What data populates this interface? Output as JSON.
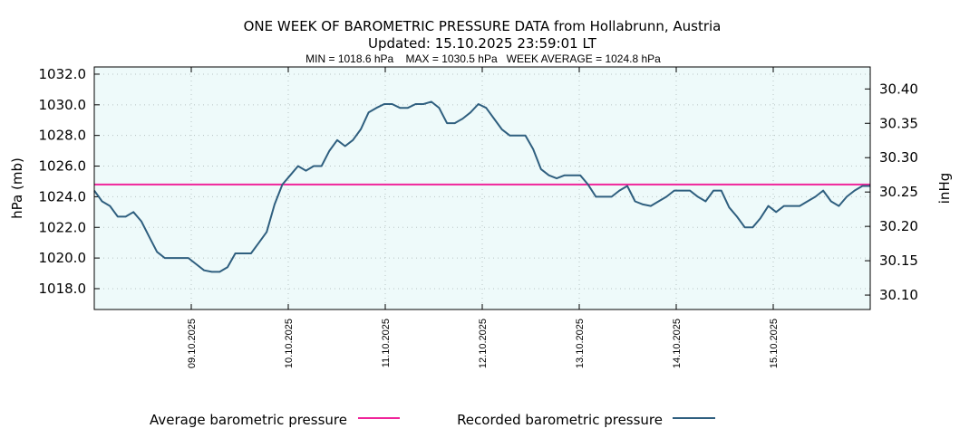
{
  "chart_data": {
    "type": "line",
    "title": "ONE WEEK OF BAROMETRIC PRESSURE DATA from Hollabrunn, Austria",
    "subtitle": "Updated: 15.10.2025 23:59:01 LT",
    "stats": "MIN = 1018.6 hPa    MAX = 1030.5 hPa   WEEK AVERAGE = 1024.8 hPa",
    "ylabel": "hPa (mb)",
    "y2label": "inHg",
    "ylim": [
      1016.64,
      1032.47
    ],
    "y2lim": [
      30.079,
      30.432
    ],
    "yticks": [
      "1018.0",
      "1020.0",
      "1022.0",
      "1024.0",
      "1026.0",
      "1028.0",
      "1030.0",
      "1032.0"
    ],
    "y2ticks": [
      "30.10",
      "30.15",
      "30.20",
      "30.25",
      "30.30",
      "30.35",
      "30.40"
    ],
    "x_range_hours": [
      0,
      192
    ],
    "xticks": [
      {
        "label": "09.10.2025",
        "hour": 24
      },
      {
        "label": "10.10.2025",
        "hour": 48
      },
      {
        "label": "11.10.2025",
        "hour": 72
      },
      {
        "label": "12.10.2025",
        "hour": 96
      },
      {
        "label": "13.10.2025",
        "hour": 120
      },
      {
        "label": "14.10.2025",
        "hour": 144
      },
      {
        "label": "15.10.2025",
        "hour": 168
      }
    ],
    "grid": true,
    "legend_position": "bottom",
    "series": [
      {
        "name": "Recorded barometric pressure",
        "color": "#2f5f7f",
        "values": [
          1024.4,
          1023.7,
          1023.4,
          1022.7,
          1022.7,
          1023.0,
          1022.4,
          1021.4,
          1020.4,
          1020.0,
          1020.0,
          1020.0,
          1020.0,
          1019.6,
          1019.2,
          1019.1,
          1019.1,
          1019.4,
          1020.3,
          1020.3,
          1020.3,
          1021.0,
          1021.7,
          1023.5,
          1024.8,
          1025.4,
          1026.0,
          1025.7,
          1026.0,
          1026.0,
          1027.0,
          1027.7,
          1027.3,
          1027.7,
          1028.4,
          1029.5,
          1029.8,
          1030.05,
          1030.05,
          1029.8,
          1029.8,
          1030.05,
          1030.05,
          1030.2,
          1029.8,
          1028.8,
          1028.8,
          1029.1,
          1029.5,
          1030.05,
          1029.8,
          1029.1,
          1028.4,
          1028.0,
          1028.0,
          1028.0,
          1027.1,
          1025.8,
          1025.4,
          1025.2,
          1025.4,
          1025.4,
          1025.4,
          1024.8,
          1024.0,
          1024.0,
          1024.0,
          1024.4,
          1024.7,
          1023.7,
          1023.5,
          1023.4,
          1023.7,
          1024.0,
          1024.4,
          1024.4,
          1024.4,
          1024.0,
          1023.7,
          1024.4,
          1024.4,
          1023.3,
          1022.7,
          1022.0,
          1022.0,
          1022.6,
          1023.4,
          1023.0,
          1023.4,
          1023.4,
          1023.4,
          1023.7,
          1024.0,
          1024.4,
          1023.7,
          1023.4,
          1024.0,
          1024.4,
          1024.7,
          1024.7
        ]
      },
      {
        "name": "Average barometric pressure",
        "color": "#f0249a",
        "value": 1024.8
      }
    ],
    "plot_background": "#eefafa"
  }
}
